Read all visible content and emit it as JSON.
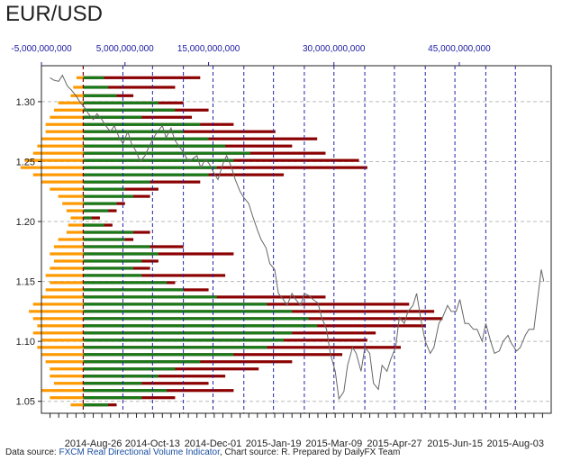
{
  "title": "EUR/USD",
  "source": {
    "prefix": "Data source: ",
    "link": "FXCM Real Directional Volume Indicator",
    "suffix": ", Chart source: R. Prepared by DailyFX Team"
  },
  "colors": {
    "price_line": "#666666",
    "bar_short": "#ff9900",
    "bar_mid": "#1a7a1a",
    "bar_long": "#8b0000",
    "volume_axis": "#1a1aa0",
    "dashed_time": "#2222aa",
    "zero_line": "#8b0000",
    "grid": "#bbbbbb"
  },
  "chart_data": {
    "type": "line",
    "title": "EUR/USD",
    "y_axis": {
      "ticks": [
        1.05,
        1.1,
        1.15,
        1.2,
        1.25,
        1.3
      ],
      "labels": [
        "1.05",
        "1.10",
        "1.15",
        "1.20",
        "1.25",
        "1.30"
      ],
      "ylim": [
        1.04,
        1.33
      ]
    },
    "x_axis": {
      "labels": [
        "2014-Aug-26",
        "2014-Oct-13",
        "2014-Dec-01",
        "2015-Jan-19",
        "2015-Mar-09",
        "2015-Apr-27",
        "2015-Jun-15",
        "2015-Aug-03"
      ],
      "range": [
        "2014-Jul-15",
        "2015-Sep-01"
      ]
    },
    "volume_axis": {
      "labels": [
        "-5,000,000,000",
        "5,000,000,000",
        "15,000,000,000",
        "30,000,000,000",
        "45,000,000,000"
      ],
      "values": [
        -5000000000,
        5000000000,
        15000000000,
        30000000000,
        45000000000
      ],
      "range": [
        -5000000000,
        56000000000
      ]
    },
    "price_series": {
      "name": "EUR/USD",
      "points": [
        [
          "2014-Jul-22",
          1.32
        ],
        [
          "2014-Jul-25",
          1.318
        ],
        [
          "2014-Jul-29",
          1.317
        ],
        [
          "2014-Aug-01",
          1.322
        ],
        [
          "2014-Aug-05",
          1.313
        ],
        [
          "2014-Aug-08",
          1.31
        ],
        [
          "2014-Aug-12",
          1.305
        ],
        [
          "2014-Aug-15",
          1.3
        ],
        [
          "2014-Aug-19",
          1.295
        ],
        [
          "2014-Aug-22",
          1.29
        ],
        [
          "2014-Aug-26",
          1.285
        ],
        [
          "2014-Aug-29",
          1.29
        ],
        [
          "2014-Sep-02",
          1.285
        ],
        [
          "2014-Sep-05",
          1.28
        ],
        [
          "2014-Sep-09",
          1.275
        ],
        [
          "2014-Sep-12",
          1.28
        ],
        [
          "2014-Sep-16",
          1.27
        ],
        [
          "2014-Sep-19",
          1.265
        ],
        [
          "2014-Sep-23",
          1.275
        ],
        [
          "2014-Sep-26",
          1.265
        ],
        [
          "2014-Sep-30",
          1.258
        ],
        [
          "2014-Oct-03",
          1.25
        ],
        [
          "2014-Oct-07",
          1.255
        ],
        [
          "2014-Oct-10",
          1.262
        ],
        [
          "2014-Oct-14",
          1.27
        ],
        [
          "2014-Oct-17",
          1.275
        ],
        [
          "2014-Oct-21",
          1.28
        ],
        [
          "2014-Oct-24",
          1.27
        ],
        [
          "2014-Oct-28",
          1.278
        ],
        [
          "2014-Oct-31",
          1.268
        ],
        [
          "2014-Nov-04",
          1.262
        ],
        [
          "2014-Nov-07",
          1.258
        ],
        [
          "2014-Nov-11",
          1.25
        ],
        [
          "2014-Nov-14",
          1.252
        ],
        [
          "2014-Nov-18",
          1.255
        ],
        [
          "2014-Nov-21",
          1.245
        ],
        [
          "2014-Nov-25",
          1.252
        ],
        [
          "2014-Nov-28",
          1.248
        ],
        [
          "2014-Dec-02",
          1.24
        ],
        [
          "2014-Dec-05",
          1.235
        ],
        [
          "2014-Dec-09",
          1.248
        ],
        [
          "2014-Dec-12",
          1.255
        ],
        [
          "2014-Dec-16",
          1.245
        ],
        [
          "2014-Dec-19",
          1.235
        ],
        [
          "2014-Dec-23",
          1.225
        ],
        [
          "2014-Dec-26",
          1.22
        ],
        [
          "2014-Dec-30",
          1.215
        ],
        [
          "2015-Jan-02",
          1.205
        ],
        [
          "2015-Jan-06",
          1.193
        ],
        [
          "2015-Jan-09",
          1.185
        ],
        [
          "2015-Jan-13",
          1.178
        ],
        [
          "2015-Jan-16",
          1.165
        ],
        [
          "2015-Jan-20",
          1.16
        ],
        [
          "2015-Jan-23",
          1.14
        ],
        [
          "2015-Jan-27",
          1.135
        ],
        [
          "2015-Jan-30",
          1.13
        ],
        [
          "2015-Feb-03",
          1.14
        ],
        [
          "2015-Feb-06",
          1.135
        ],
        [
          "2015-Feb-10",
          1.13
        ],
        [
          "2015-Feb-13",
          1.14
        ],
        [
          "2015-Feb-17",
          1.138
        ],
        [
          "2015-Feb-20",
          1.135
        ],
        [
          "2015-Feb-24",
          1.132
        ],
        [
          "2015-Feb-27",
          1.12
        ],
        [
          "2015-Mar-03",
          1.11
        ],
        [
          "2015-Mar-06",
          1.09
        ],
        [
          "2015-Mar-10",
          1.075
        ],
        [
          "2015-Mar-13",
          1.052
        ],
        [
          "2015-Mar-17",
          1.058
        ],
        [
          "2015-Mar-20",
          1.08
        ],
        [
          "2015-Mar-24",
          1.095
        ],
        [
          "2015-Mar-27",
          1.09
        ],
        [
          "2015-Mar-31",
          1.075
        ],
        [
          "2015-Apr-03",
          1.095
        ],
        [
          "2015-Apr-07",
          1.09
        ],
        [
          "2015-Apr-10",
          1.065
        ],
        [
          "2015-Apr-14",
          1.06
        ],
        [
          "2015-Apr-17",
          1.08
        ],
        [
          "2015-Apr-21",
          1.075
        ],
        [
          "2015-Apr-24",
          1.085
        ],
        [
          "2015-Apr-28",
          1.095
        ],
        [
          "2015-May-01",
          1.12
        ],
        [
          "2015-May-05",
          1.115
        ],
        [
          "2015-May-08",
          1.125
        ],
        [
          "2015-May-12",
          1.13
        ],
        [
          "2015-May-15",
          1.14
        ],
        [
          "2015-May-19",
          1.115
        ],
        [
          "2015-May-22",
          1.1
        ],
        [
          "2015-May-26",
          1.09
        ],
        [
          "2015-May-29",
          1.095
        ],
        [
          "2015-Jun-02",
          1.115
        ],
        [
          "2015-Jun-05",
          1.12
        ],
        [
          "2015-Jun-09",
          1.13
        ],
        [
          "2015-Jun-12",
          1.125
        ],
        [
          "2015-Jun-16",
          1.125
        ],
        [
          "2015-Jun-19",
          1.135
        ],
        [
          "2015-Jun-23",
          1.115
        ],
        [
          "2015-Jun-26",
          1.115
        ],
        [
          "2015-Jun-30",
          1.11
        ],
        [
          "2015-Jul-03",
          1.11
        ],
        [
          "2015-Jul-07",
          1.1
        ],
        [
          "2015-Jul-10",
          1.115
        ],
        [
          "2015-Jul-14",
          1.1
        ],
        [
          "2015-Jul-17",
          1.09
        ],
        [
          "2015-Jul-21",
          1.092
        ],
        [
          "2015-Jul-24",
          1.1
        ],
        [
          "2015-Jul-28",
          1.105
        ],
        [
          "2015-Jul-31",
          1.098
        ],
        [
          "2015-Aug-04",
          1.092
        ],
        [
          "2015-Aug-07",
          1.095
        ],
        [
          "2015-Aug-11",
          1.105
        ],
        [
          "2015-Aug-14",
          1.11
        ],
        [
          "2015-Aug-18",
          1.11
        ],
        [
          "2015-Aug-21",
          1.135
        ],
        [
          "2015-Aug-24",
          1.16
        ],
        [
          "2015-Aug-26",
          1.15
        ]
      ]
    },
    "volume_profile": {
      "note_unit": "volume",
      "levels": [
        {
          "price": 1.32,
          "orange": 800000000.0,
          "green": 2500000000.0,
          "red": 14000000000.0
        },
        {
          "price": 1.312,
          "orange": 1200000000.0,
          "green": 3000000000.0,
          "red": 11000000000.0
        },
        {
          "price": 1.305,
          "orange": 1500000000.0,
          "green": 4000000000.0,
          "red": 6000000000.0
        },
        {
          "price": 1.299,
          "orange": 3000000000.0,
          "green": 9000000000.0,
          "red": 12000000000.0
        },
        {
          "price": 1.293,
          "orange": 3500000000.0,
          "green": 11000000000.0,
          "red": 15000000000.0
        },
        {
          "price": 1.287,
          "orange": 4000000000.0,
          "green": 7000000000.0,
          "red": 13000000000.0
        },
        {
          "price": 1.281,
          "orange": 4500000000.0,
          "green": 14000000000.0,
          "red": 18000000000.0
        },
        {
          "price": 1.275,
          "orange": 4500000000.0,
          "green": 12000000000.0,
          "red": 23000000000.0
        },
        {
          "price": 1.269,
          "orange": 5000000000.0,
          "green": 15000000000.0,
          "red": 28000000000.0
        },
        {
          "price": 1.263,
          "orange": 5500000000.0,
          "green": 17000000000.0,
          "red": 25000000000.0
        },
        {
          "price": 1.257,
          "orange": 6000000000.0,
          "green": 20000000000.0,
          "red": 29000000000.0
        },
        {
          "price": 1.251,
          "orange": 7000000000.0,
          "green": 18000000000.0,
          "red": 33000000000.0
        },
        {
          "price": 1.245,
          "orange": 7500000000.0,
          "green": 16000000000.0,
          "red": 34000000000.0
        },
        {
          "price": 1.239,
          "orange": 6000000000.0,
          "green": 15000000000.0,
          "red": 24000000000.0
        },
        {
          "price": 1.233,
          "orange": 5000000000.0,
          "green": 8000000000.0,
          "red": 14000000000.0
        },
        {
          "price": 1.227,
          "orange": 4000000000.0,
          "green": 5000000000.0,
          "red": 9000000000.0
        },
        {
          "price": 1.221,
          "orange": 3000000000.0,
          "green": 6000000000.0,
          "red": 8000000000.0
        },
        {
          "price": 1.215,
          "orange": 2500000000.0,
          "green": 4000000000.0,
          "red": 5000000000.0
        },
        {
          "price": 1.209,
          "orange": 2000000000.0,
          "green": 3000000000.0,
          "red": 4000000000.0
        },
        {
          "price": 1.203,
          "orange": 1500000000.0,
          "green": 1000000000.0,
          "red": 2000000000.0
        },
        {
          "price": 1.197,
          "orange": 1800000000.0,
          "green": 2500000000.0,
          "red": 3500000000.0
        },
        {
          "price": 1.191,
          "orange": 2000000000.0,
          "green": 6000000000.0,
          "red": 8000000000.0
        },
        {
          "price": 1.185,
          "orange": 3000000000.0,
          "green": 5000000000.0,
          "red": 6000000000.0
        },
        {
          "price": 1.179,
          "orange": 3500000000.0,
          "green": 8000000000.0,
          "red": 12000000000.0
        },
        {
          "price": 1.173,
          "orange": 4000000000.0,
          "green": 9000000000.0,
          "red": 18000000000.0
        },
        {
          "price": 1.167,
          "orange": 3500000000.0,
          "green": 7000000000.0,
          "red": 9000000000.0
        },
        {
          "price": 1.161,
          "orange": 4000000000.0,
          "green": 6000000000.0,
          "red": 8000000000.0
        },
        {
          "price": 1.155,
          "orange": 4500000000.0,
          "green": 7000000000.0,
          "red": 17000000000.0
        },
        {
          "price": 1.149,
          "orange": 4000000000.0,
          "green": 10000000000.0,
          "red": 11000000000.0
        },
        {
          "price": 1.143,
          "orange": 4500000000.0,
          "green": 12000000000.0,
          "red": 15000000000.0
        },
        {
          "price": 1.137,
          "orange": 5000000000.0,
          "green": 16000000000.0,
          "red": 29000000000.0
        },
        {
          "price": 1.131,
          "orange": 6000000000.0,
          "green": 22000000000.0,
          "red": 39000000000.0
        },
        {
          "price": 1.125,
          "orange": 6500000000.0,
          "green": 25000000000.0,
          "red": 42000000000.0
        },
        {
          "price": 1.119,
          "orange": 6000000000.0,
          "green": 27000000000.0,
          "red": 43000000000.0
        },
        {
          "price": 1.113,
          "orange": 5500000000.0,
          "green": 28000000000.0,
          "red": 41000000000.0
        },
        {
          "price": 1.107,
          "orange": 6000000000.0,
          "green": 25000000000.0,
          "red": 35000000000.0
        },
        {
          "price": 1.101,
          "orange": 5000000000.0,
          "green": 24000000000.0,
          "red": 34000000000.0
        },
        {
          "price": 1.095,
          "orange": 5500000000.0,
          "green": 22000000000.0,
          "red": 38000000000.0
        },
        {
          "price": 1.089,
          "orange": 5000000000.0,
          "green": 18000000000.0,
          "red": 31000000000.0
        },
        {
          "price": 1.083,
          "orange": 4500000000.0,
          "green": 14000000000.0,
          "red": 25000000000.0
        },
        {
          "price": 1.077,
          "orange": 4000000000.0,
          "green": 11000000000.0,
          "red": 21000000000.0
        },
        {
          "price": 1.071,
          "orange": 4000000000.0,
          "green": 9000000000.0,
          "red": 17000000000.0
        },
        {
          "price": 1.065,
          "orange": 3500000000.0,
          "green": 7000000000.0,
          "red": 15000000000.0
        },
        {
          "price": 1.059,
          "orange": 5000000000.0,
          "green": 10000000000.0,
          "red": 18000000000.0
        },
        {
          "price": 1.053,
          "orange": 4000000000.0,
          "green": 7000000000.0,
          "red": 11000000000.0
        },
        {
          "price": 1.047,
          "orange": 1500000000.0,
          "green": 3000000000.0,
          "red": 4000000000.0
        }
      ]
    },
    "grid": true
  }
}
